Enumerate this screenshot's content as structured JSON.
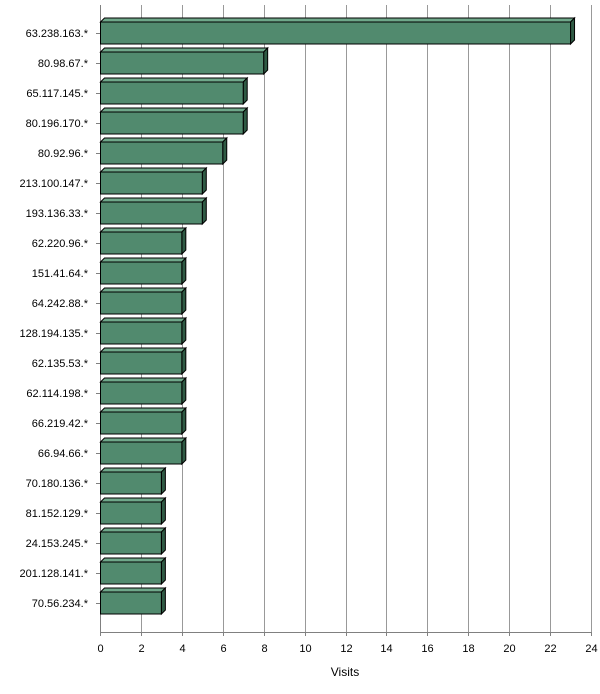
{
  "chart_data": {
    "type": "bar",
    "orientation": "horizontal",
    "title": "",
    "xlabel": "Visits",
    "ylabel": "",
    "xlim": [
      0,
      24
    ],
    "x_ticks": [
      0,
      2,
      4,
      6,
      8,
      10,
      12,
      14,
      16,
      18,
      20,
      22,
      24
    ],
    "grid": true,
    "legend": "none",
    "categories": [
      "63.238.163.*",
      "80.98.67.*",
      "65.117.145.*",
      "80.196.170.*",
      "80.92.96.*",
      "213.100.147.*",
      "193.136.33.*",
      "62.220.96.*",
      "151.41.64.*",
      "64.242.88.*",
      "128.194.135.*",
      "62.135.53.*",
      "62.114.198.*",
      "66.219.42.*",
      "66.94.66.*",
      "70.180.136.*",
      "81.152.129.*",
      "24.153.245.*",
      "201.128.141.*",
      "70.56.234.*"
    ],
    "values": [
      23,
      8,
      7,
      7,
      6,
      5,
      5,
      4,
      4,
      4,
      4,
      4,
      4,
      4,
      4,
      3,
      3,
      3,
      3,
      3
    ],
    "colors": {
      "bar_front": "#518a6e",
      "bar_top": "#6fa88a",
      "bar_side": "#2f5a44",
      "bar_outline": "#000000",
      "grid": "#999999",
      "axis": "#808080"
    }
  }
}
